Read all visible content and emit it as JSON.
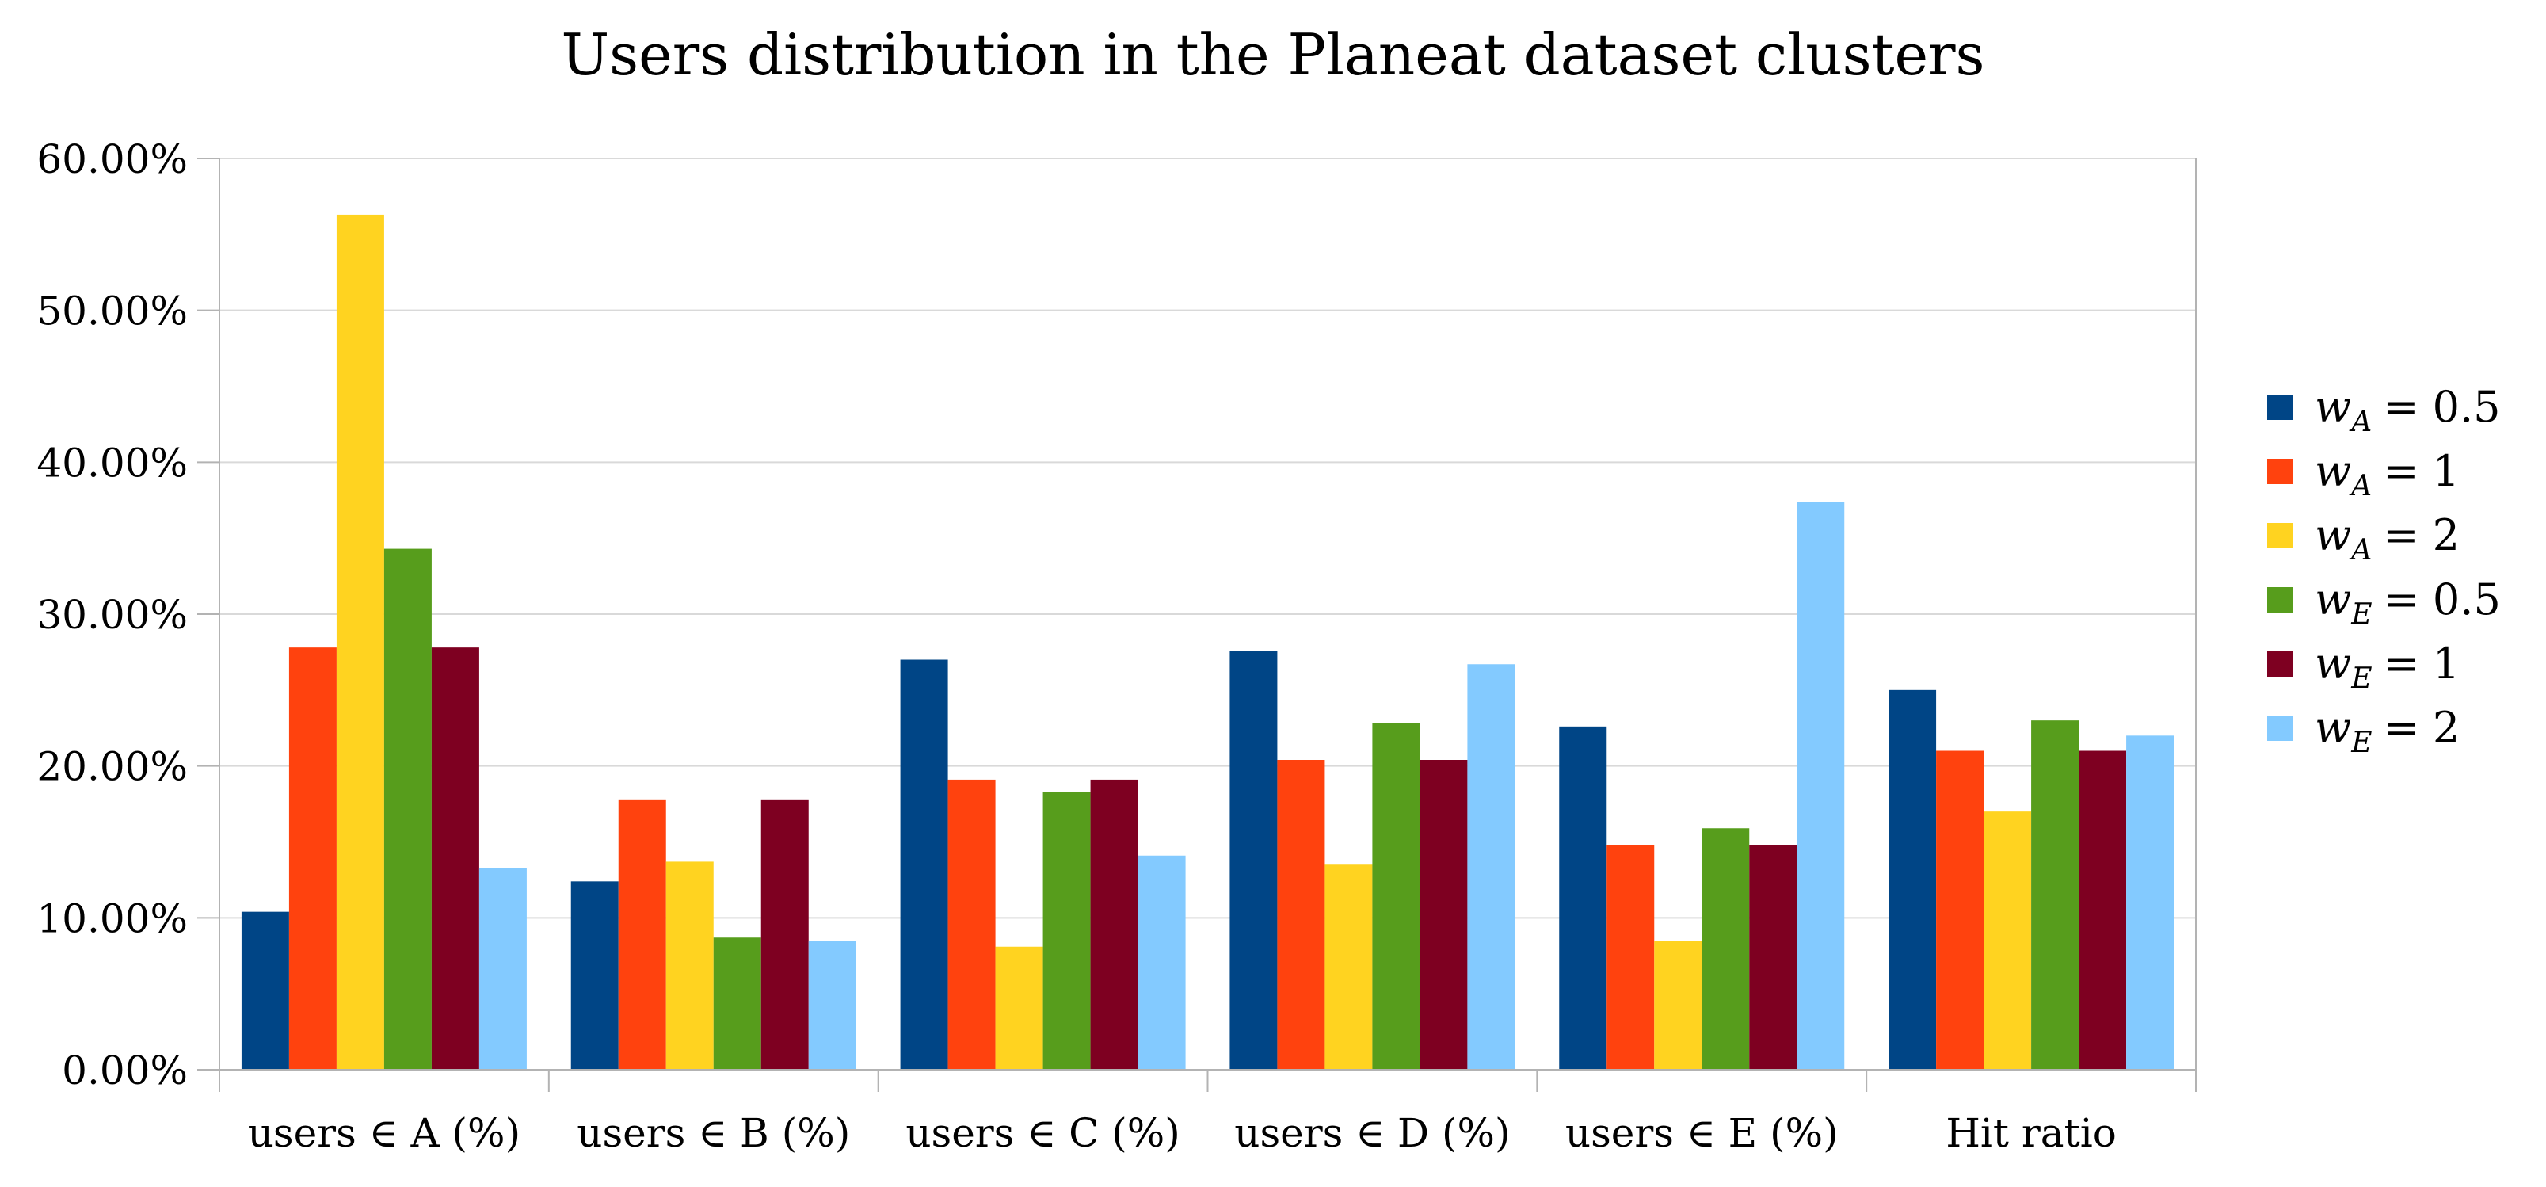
{
  "chart_data": {
    "type": "bar",
    "title": "Users distribution in the Planeat dataset clusters",
    "xlabel": "",
    "ylabel": "",
    "categories": [
      "users ∈ A (%)",
      "users ∈ B (%)",
      "users ∈ C (%)",
      "users ∈ D (%)",
      "users ∈ E (%)",
      "Hit ratio"
    ],
    "ylim": [
      0,
      60
    ],
    "yticks": [
      0,
      10,
      20,
      30,
      40,
      50,
      60
    ],
    "ytick_labels": [
      "0.00%",
      "10.00%",
      "20.00%",
      "30.00%",
      "40.00%",
      "50.00%",
      "60.00%"
    ],
    "grid": true,
    "legend_position": "right",
    "series": [
      {
        "name": "w_A = 0.5",
        "var": "w",
        "sub": "A",
        "rhs": "= 0.5",
        "color": "#004586",
        "values": [
          10.4,
          12.4,
          27.0,
          27.6,
          22.6,
          25.0
        ]
      },
      {
        "name": "w_A = 1",
        "var": "w",
        "sub": "A",
        "rhs": "= 1",
        "color": "#ff420e",
        "values": [
          27.8,
          17.8,
          19.1,
          20.4,
          14.8,
          21.0
        ]
      },
      {
        "name": "w_A = 2",
        "var": "w",
        "sub": "A",
        "rhs": "= 2",
        "color": "#ffd320",
        "values": [
          56.3,
          13.7,
          8.1,
          13.5,
          8.5,
          17.0
        ]
      },
      {
        "name": "w_E = 0.5",
        "var": "w",
        "sub": "E",
        "rhs": "= 0.5",
        "color": "#579d1c",
        "values": [
          34.3,
          8.7,
          18.3,
          22.8,
          15.9,
          23.0
        ]
      },
      {
        "name": "w_E = 1",
        "var": "w",
        "sub": "E",
        "rhs": "= 1",
        "color": "#7e0021",
        "values": [
          27.8,
          17.8,
          19.1,
          20.4,
          14.8,
          21.0
        ]
      },
      {
        "name": "w_E = 2",
        "var": "w",
        "sub": "E",
        "rhs": "= 2",
        "color": "#83caff",
        "values": [
          13.3,
          8.5,
          14.1,
          26.7,
          37.4,
          22.0
        ]
      }
    ]
  }
}
